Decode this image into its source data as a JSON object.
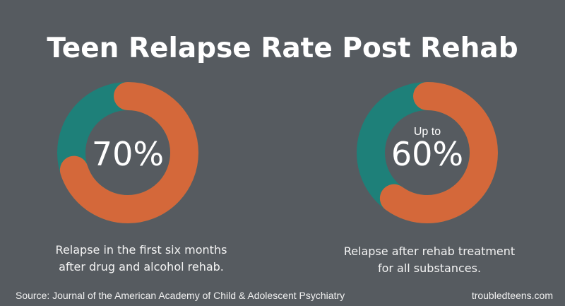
{
  "title": "Teen Relapse Rate Post Rehab",
  "colors": {
    "background": "#565b60",
    "relapse": "#d4683a",
    "remaining": "#1e8079"
  },
  "chart_data": [
    {
      "type": "pie",
      "style": "donut",
      "prefix": "",
      "value_label": "70%",
      "slices": [
        {
          "category": "relapse",
          "value": 70,
          "color": "#d4683a"
        },
        {
          "category": "other",
          "value": 30,
          "color": "#1e8079"
        }
      ],
      "caption": [
        "Relapse in the first six months",
        "after drug and alcohol rehab."
      ]
    },
    {
      "type": "pie",
      "style": "donut",
      "prefix": "Up to",
      "value_label": "60%",
      "slices": [
        {
          "category": "relapse",
          "value": 60,
          "color": "#d4683a"
        },
        {
          "category": "other",
          "value": 40,
          "color": "#1e8079"
        }
      ],
      "caption": [
        "Relapse after rehab treatment",
        "for all substances."
      ]
    }
  ],
  "footer": {
    "source": "Source: Journal of the American Academy of Child & Adolescent Psychiatry",
    "site": "troubledteens.com"
  }
}
